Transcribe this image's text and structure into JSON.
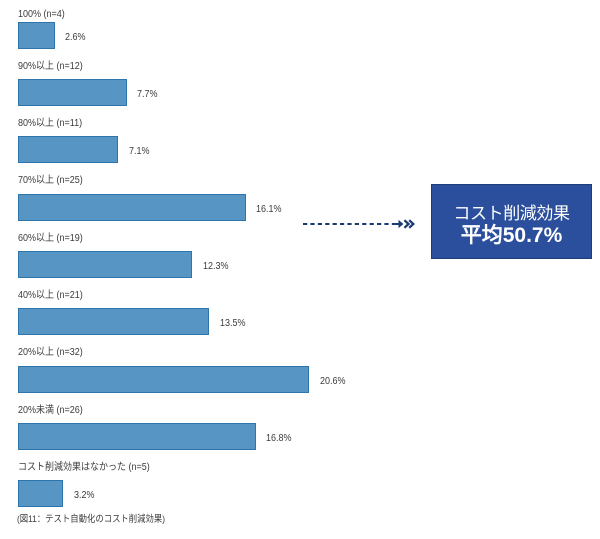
{
  "chart_data": {
    "type": "bar",
    "orientation": "horizontal",
    "categories": [
      "100% (n=4)",
      "90%以上 (n=12)",
      "80%以上 (n=11)",
      "70%以上 (n=25)",
      "60%以上 (n=19)",
      "40%以上 (n=21)",
      "20%以上 (n=32)",
      "20%未満 (n=26)",
      "コスト削減効果はなかった (n=5)"
    ],
    "values": [
      2.6,
      7.7,
      7.1,
      16.1,
      12.3,
      13.5,
      20.6,
      16.8,
      3.2
    ],
    "value_labels": [
      "2.6%",
      "7.7%",
      "7.1%",
      "16.1%",
      "12.3%",
      "13.5%",
      "20.6%",
      "16.8%",
      "3.2%"
    ],
    "bar_fill_color": "#5795c5",
    "bar_border_color": "#2e75ac",
    "text_color": "#3b3b3b",
    "grid": false,
    "legend": false,
    "xlabel": "",
    "ylabel": "",
    "title": "",
    "caption": "(図11：テスト自動化のコスト削減効果)",
    "annotation": {
      "line1": "コスト削減効果",
      "line2": "平均50.7%",
      "box_fill_color": "#2b4f9c",
      "box_border_color": "#1e3c7a",
      "arrow_color": "#1b3a74",
      "points_from_category": "70%以上 (n=25)"
    }
  }
}
